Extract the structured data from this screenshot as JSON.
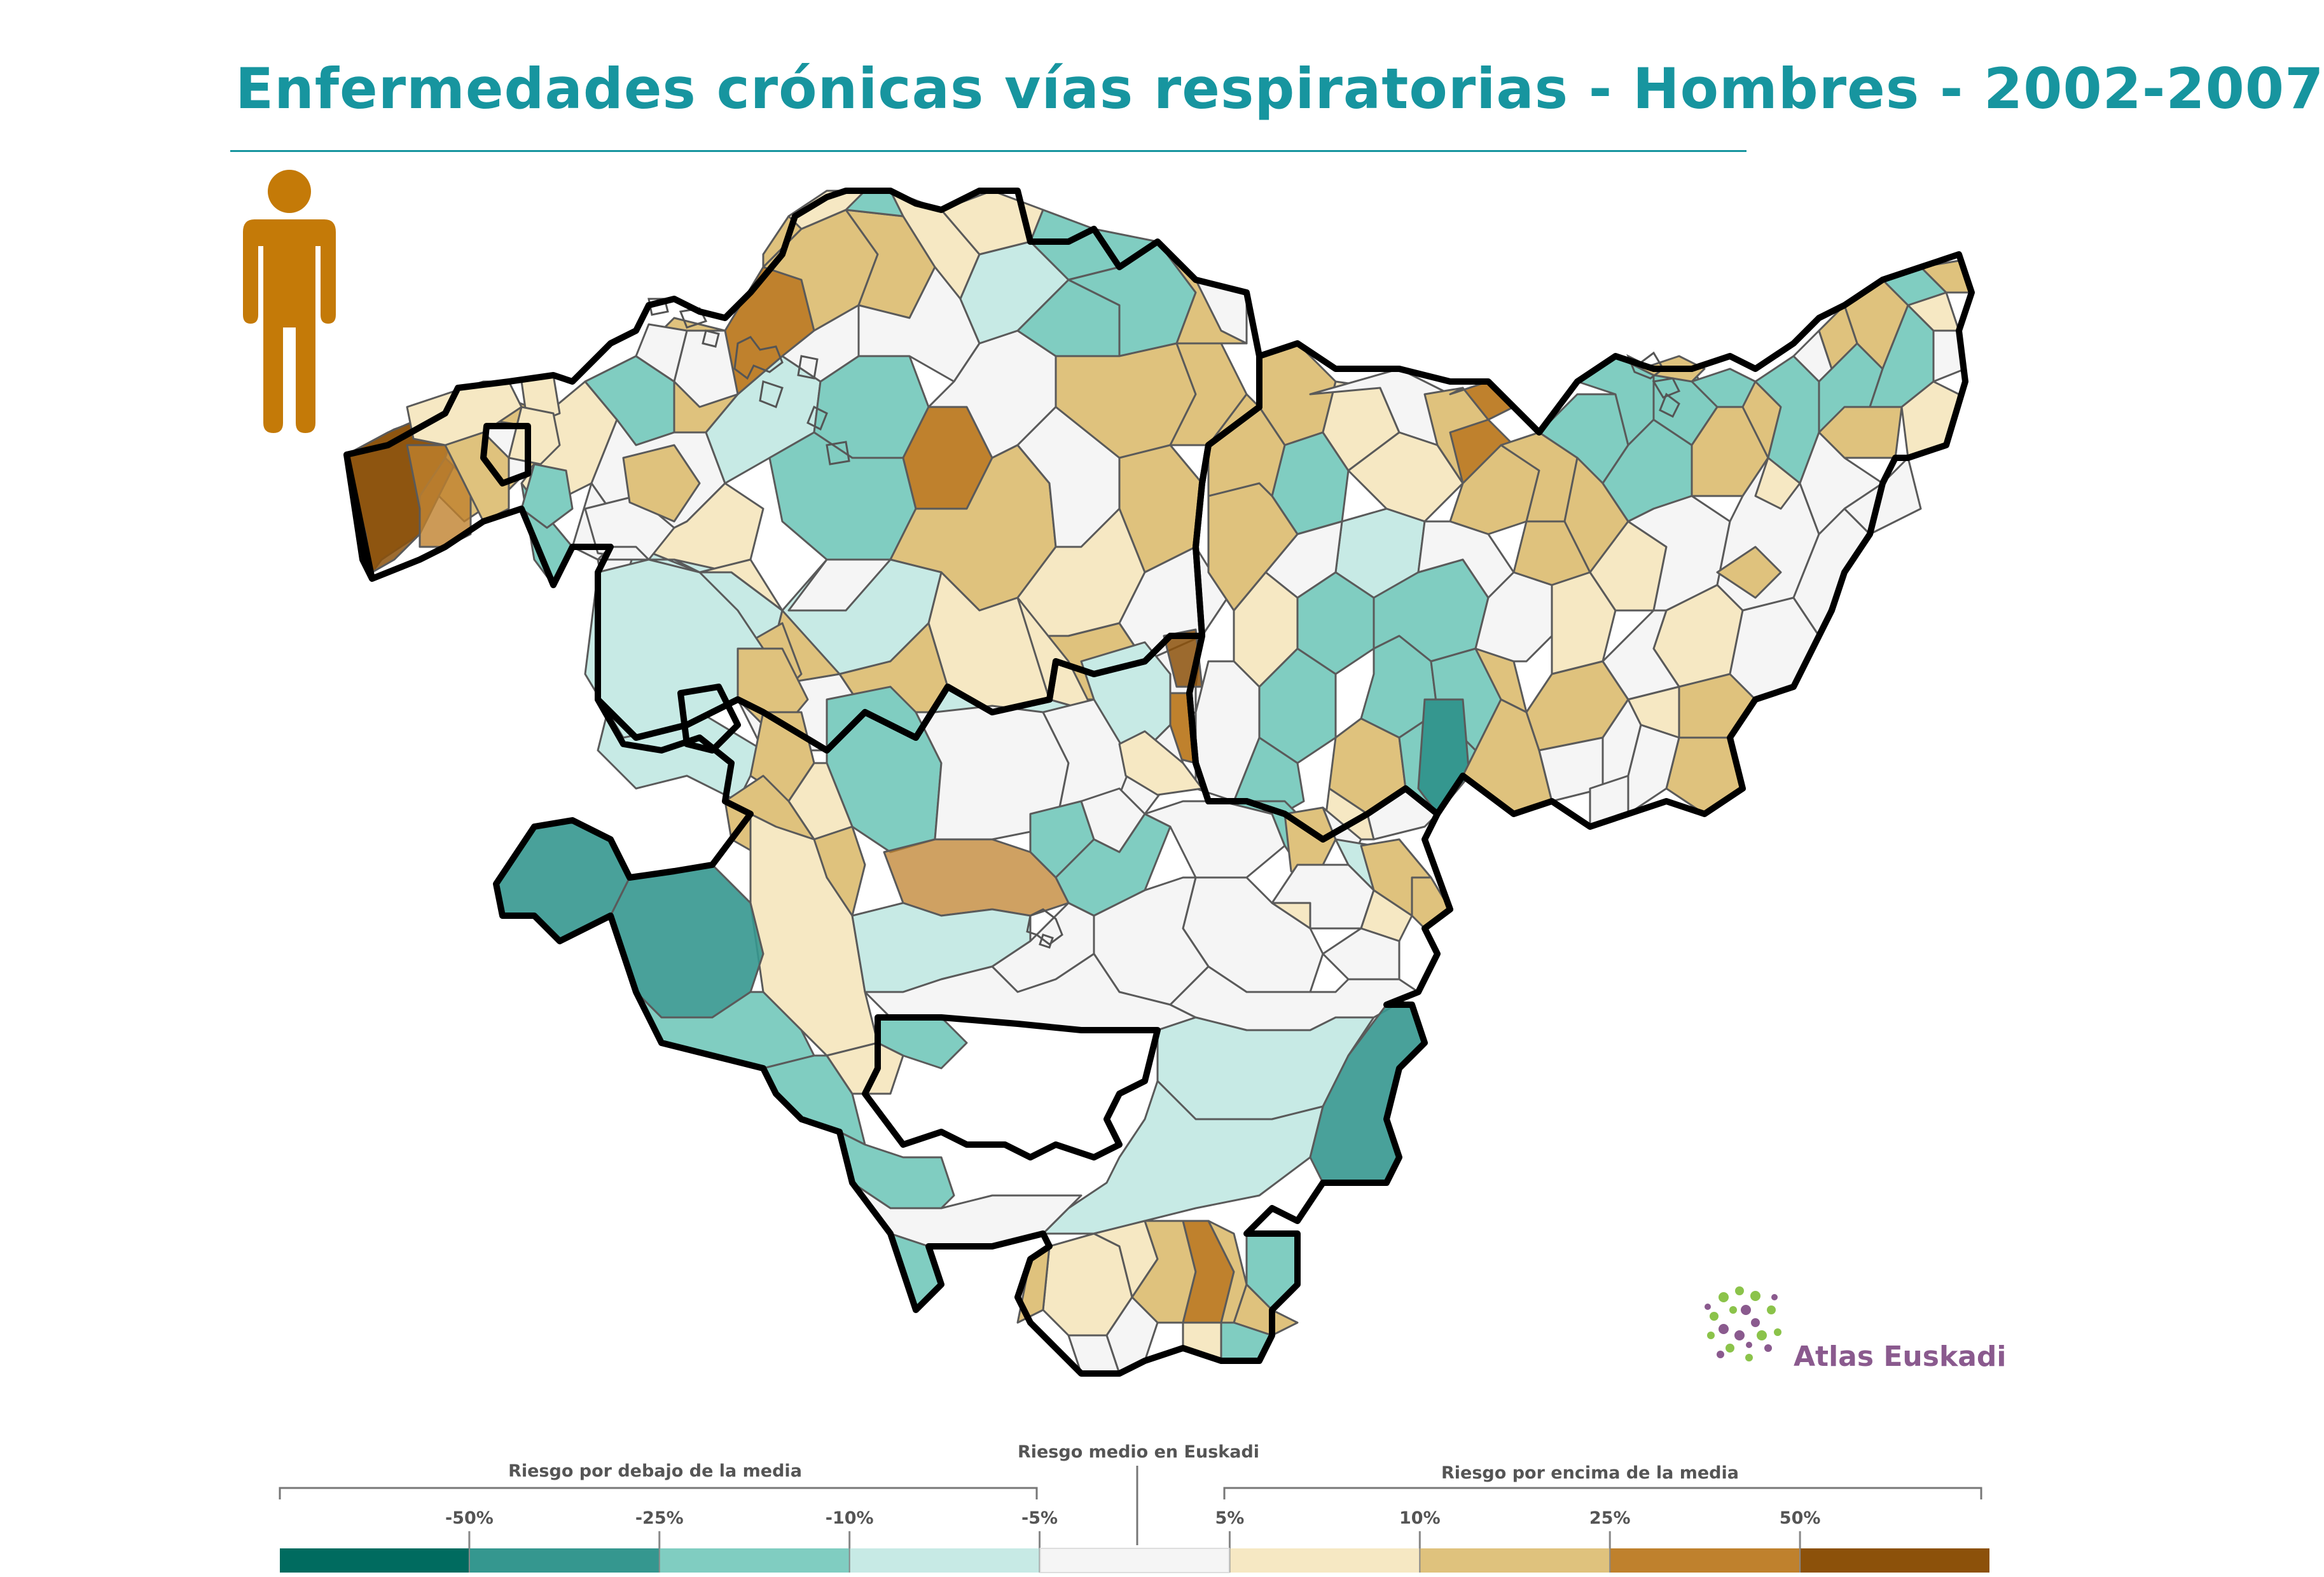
{
  "title": "Enfermedades crónicas vías respiratorias - Hombres - 2002-2007",
  "icon": "male-person-icon",
  "colors": {
    "title": "#17959f",
    "person": "#c47a08",
    "border_thick": "#000000",
    "border_thin": "#5a5a5a"
  },
  "logo": {
    "text": "Atlas Euskadi",
    "icon": "dotted-globe-icon"
  },
  "legend": {
    "below_label": "Riesgo por debajo de la media",
    "center_label": "Riesgo medio en Euskadi",
    "above_label": "Riesgo por encima de la media",
    "ticks": [
      "-50%",
      "-25%",
      "-10%",
      "-5%",
      "5%",
      "10%",
      "25%",
      "50%"
    ],
    "classes": [
      {
        "range": "< -50%",
        "color": "#006b5f"
      },
      {
        "range": "-50% a -25%",
        "color": "#35978f"
      },
      {
        "range": "-25% a -10%",
        "color": "#80cdc1"
      },
      {
        "range": "-10% a -5%",
        "color": "#c7eae5"
      },
      {
        "range": "-5% a 5%",
        "color": "#f5f5f5"
      },
      {
        "range": "5% a 10%",
        "color": "#f6e8c3"
      },
      {
        "range": "10% a 25%",
        "color": "#dfc27d"
      },
      {
        "range": "25% a 50%",
        "color": "#bf812d"
      },
      {
        "range": "> 50%",
        "color": "#8c510a"
      }
    ]
  }
}
